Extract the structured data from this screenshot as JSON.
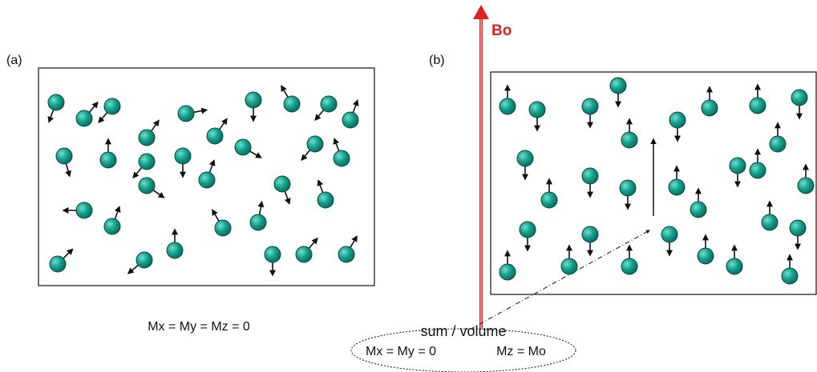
{
  "panel_a": {
    "label": "(a)",
    "caption": "Mx = My = Mz = 0"
  },
  "panel_b": {
    "label": "(b)",
    "field_label": "Bo",
    "note": {
      "title": "sum / volume",
      "left": "Mx = My = 0",
      "right": "Mz = Mo"
    }
  }
}
